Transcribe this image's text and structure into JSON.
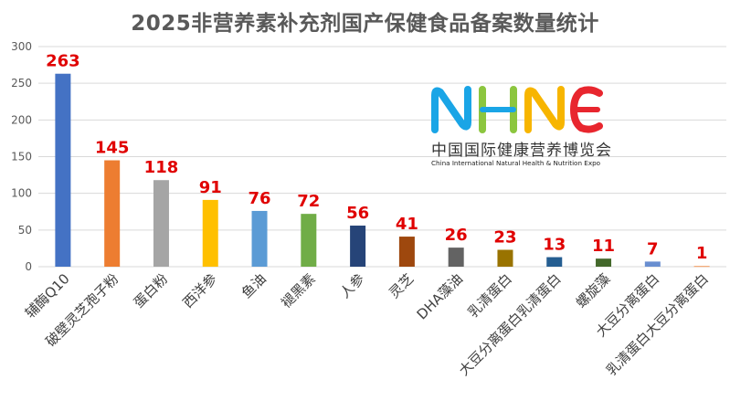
{
  "chart_data": {
    "type": "bar",
    "title": "2025非营养素补充剂国产保健食品备案数量统计",
    "categories": [
      "辅酶Q10",
      "破壁灵芝孢子粉",
      "蛋白粉",
      "西洋参",
      "鱼油",
      "褪黑素",
      "人参",
      "灵芝",
      "DHA藻油",
      "乳清蛋白",
      "大豆分离蛋白乳清蛋白",
      "螺旋藻",
      "大豆分离蛋白",
      "乳清蛋白大豆分离蛋白"
    ],
    "values": [
      263,
      145,
      118,
      91,
      76,
      72,
      56,
      41,
      26,
      23,
      13,
      11,
      7,
      1
    ],
    "colors": [
      "#4472c4",
      "#ed7d31",
      "#a5a5a5",
      "#ffc000",
      "#5b9bd5",
      "#70ad47",
      "#264478",
      "#9e480e",
      "#636363",
      "#997300",
      "#255e91",
      "#43682b",
      "#698ed0",
      "#f1975a"
    ],
    "yticks": [
      0,
      50,
      100,
      150,
      200,
      250,
      300
    ],
    "ylim": [
      0,
      300
    ],
    "grid": true,
    "legend": "none",
    "data_label_color": "#e00000"
  },
  "logo": {
    "mark": "NHNE",
    "name_cn": "中国国际健康营养博览会",
    "name_en": "China International Natural Health & Nutrition Expo"
  }
}
